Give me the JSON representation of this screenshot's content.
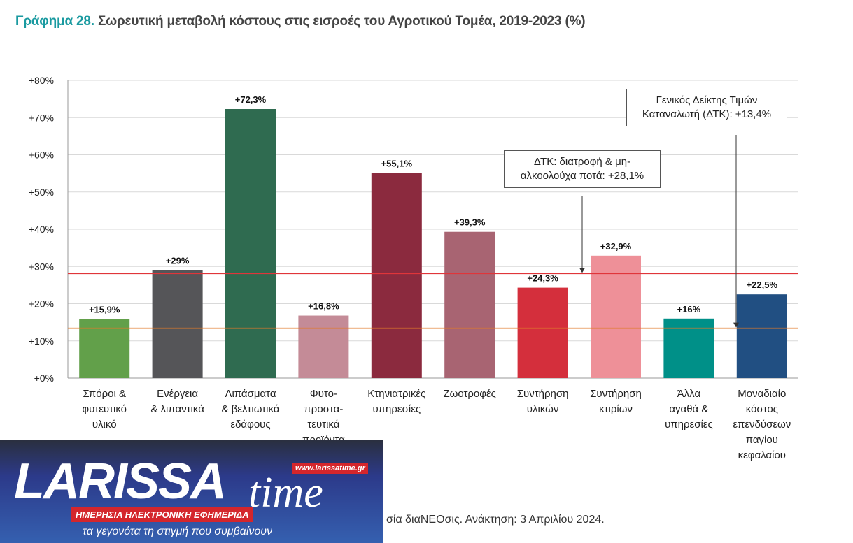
{
  "chart_data": {
    "type": "bar",
    "title_prefix": "Γράφημα 28.",
    "title": "Σωρευτική μεταβολή κόστους στις εισροές του Αγροτικού Τομέα, 2019-2023 (%)",
    "categories": [
      [
        "Σπόροι &",
        "φυτευτικό",
        "υλικό"
      ],
      [
        "Ενέργεια",
        "& λιπαντικά"
      ],
      [
        "Λιπάσματα",
        "& βελτιωτικά",
        "εδάφους"
      ],
      [
        "Φυτο-",
        "προστα-",
        "τευτικά",
        "προϊόντα"
      ],
      [
        "Κτηνιατρικές",
        "υπηρεσίες"
      ],
      [
        "Ζωοτροφές"
      ],
      [
        "Συντήρηση",
        "υλικών"
      ],
      [
        "Συντήρηση",
        "κτιρίων"
      ],
      [
        "Άλλα",
        "αγαθά &",
        "υπηρεσίες"
      ],
      [
        "Μοναδιαίο",
        "κόστος",
        "επενδύσεων",
        "παγίου",
        "κεφαλαίου"
      ]
    ],
    "values": [
      15.9,
      29,
      72.3,
      16.8,
      55.1,
      39.3,
      24.3,
      32.9,
      16,
      22.5
    ],
    "data_labels": [
      "+15,9%",
      "+29%",
      "+72,3%",
      "+16,8%",
      "+55,1%",
      "+39,3%",
      "+24,3%",
      "+32,9%",
      "+16%",
      "+22,5%"
    ],
    "colors": [
      "#62a04a",
      "#555558",
      "#2f6b50",
      "#c48b97",
      "#8b2a3e",
      "#a86472",
      "#d42f3c",
      "#ee9098",
      "#009088",
      "#214f82"
    ],
    "yticks": [
      "+0%",
      "+10%",
      "+20%",
      "+30%",
      "+40%",
      "+50%",
      "+60%",
      "+70%",
      "+80%"
    ],
    "ylim": [
      0,
      80
    ],
    "grid": true,
    "reference_lines": [
      {
        "name": "ΔΤΚ διατροφή",
        "value": 28.1,
        "color": "#e0353a",
        "label": [
          "ΔΤΚ: διατροφή & μη-",
          "αλκοολούχα ποτά: +28,1%"
        ]
      },
      {
        "name": "ΓΔΤΚ",
        "value": 13.4,
        "color": "#e07a2a",
        "label": [
          "Γενικός Δείκτης Τιμών",
          "Καταναλωτή (ΔΤΚ): +13,4%"
        ]
      }
    ]
  },
  "logo": {
    "name": "LARISSA",
    "time": "time",
    "url": "www.larissatime.gr",
    "tagline": "ΗΜΕΡΗΣΙΑ ΗΛΕΚΤΡΟΝΙΚΗ ΕΦΗΜΕΡΙΔΑ",
    "slogan": "τα γεγονότα τη στιγμή που συμβαίνουν"
  },
  "source": "σία διαΝΕΟσις. Ανάκτηση: 3 Απριλίου 2024."
}
